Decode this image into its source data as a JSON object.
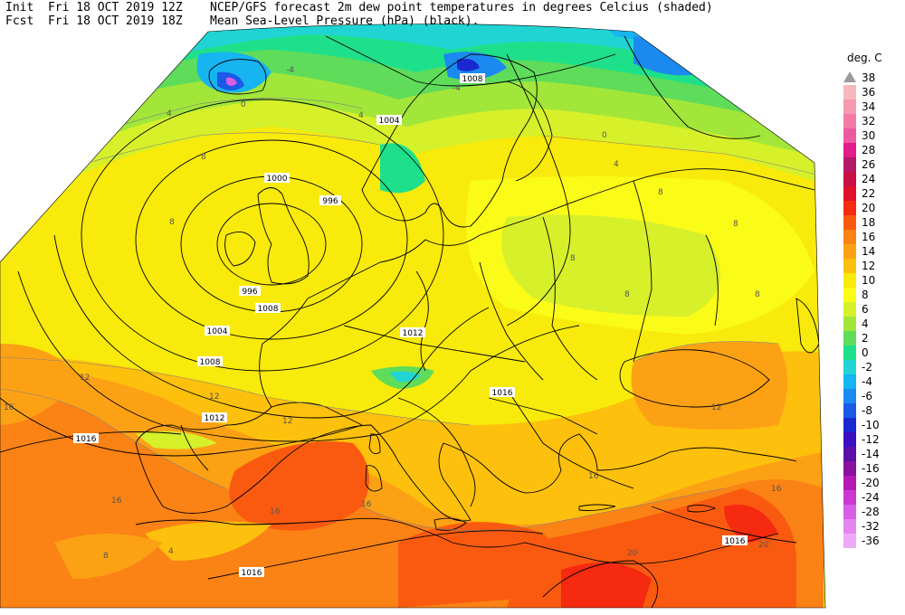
{
  "header": {
    "init_label": "Init",
    "init_value": "Fri 18 OCT 2019 12Z",
    "fcst_label": "Fcst",
    "fcst_value": "Fri 18 OCT 2019 18Z",
    "line1": "NCEP/GFS forecast 2m dew point temperatures in degrees Celcius (shaded)",
    "line2": "Mean Sea-Level Pressure (hPa) (black)."
  },
  "legend": {
    "unit": "deg. C",
    "levels": [
      {
        "label": "38",
        "color": "#9a9a9a"
      },
      {
        "label": "36",
        "color": "#f7b8bc"
      },
      {
        "label": "34",
        "color": "#f59ab0"
      },
      {
        "label": "32",
        "color": "#f27ba8"
      },
      {
        "label": "30",
        "color": "#ee5aa0"
      },
      {
        "label": "28",
        "color": "#e11d8a"
      },
      {
        "label": "26",
        "color": "#b4186a"
      },
      {
        "label": "24",
        "color": "#c81044"
      },
      {
        "label": "22",
        "color": "#e0102a"
      },
      {
        "label": "20",
        "color": "#f52a10"
      },
      {
        "label": "18",
        "color": "#fa5a10"
      },
      {
        "label": "16",
        "color": "#fb8214"
      },
      {
        "label": "14",
        "color": "#fca114"
      },
      {
        "label": "12",
        "color": "#fdc00c"
      },
      {
        "label": "10",
        "color": "#f8ea0a"
      },
      {
        "label": "8",
        "color": "#fbfb18"
      },
      {
        "label": "6",
        "color": "#d6f02a"
      },
      {
        "label": "4",
        "color": "#a2e63a"
      },
      {
        "label": "2",
        "color": "#5fdc5a"
      },
      {
        "label": "0",
        "color": "#1ee08a"
      },
      {
        "label": "-2",
        "color": "#20d4d4"
      },
      {
        "label": "-4",
        "color": "#16b4f0"
      },
      {
        "label": "-6",
        "color": "#1a8af0"
      },
      {
        "label": "-8",
        "color": "#1a5ae6"
      },
      {
        "label": "-10",
        "color": "#1a28d2"
      },
      {
        "label": "-12",
        "color": "#3c10c0"
      },
      {
        "label": "-14",
        "color": "#5a10a8"
      },
      {
        "label": "-16",
        "color": "#8a10a0"
      },
      {
        "label": "-20",
        "color": "#b418b4"
      },
      {
        "label": "-24",
        "color": "#cc38d2"
      },
      {
        "label": "-28",
        "color": "#d85ee6"
      },
      {
        "label": "-32",
        "color": "#e486f0"
      },
      {
        "label": "-36",
        "color": "#eeaaf8"
      }
    ]
  },
  "isobar_labels": [
    "1004",
    "1000",
    "996",
    "996",
    "1008",
    "1004",
    "1008",
    "1012",
    "1012",
    "1016",
    "1016",
    "1016",
    "1008",
    "1016"
  ],
  "temp_labels": [
    "-4",
    "-4",
    "0",
    "4",
    "4",
    "0",
    "8",
    "8",
    "8",
    "4",
    "8",
    "8",
    "8",
    "12",
    "12",
    "12",
    "12",
    "16",
    "16",
    "16",
    "16",
    "16",
    "16",
    "20",
    "20",
    "8",
    "4",
    "8"
  ],
  "colors": {
    "coast": "#000000",
    "isobar": "#000000",
    "contour": "#808080"
  }
}
